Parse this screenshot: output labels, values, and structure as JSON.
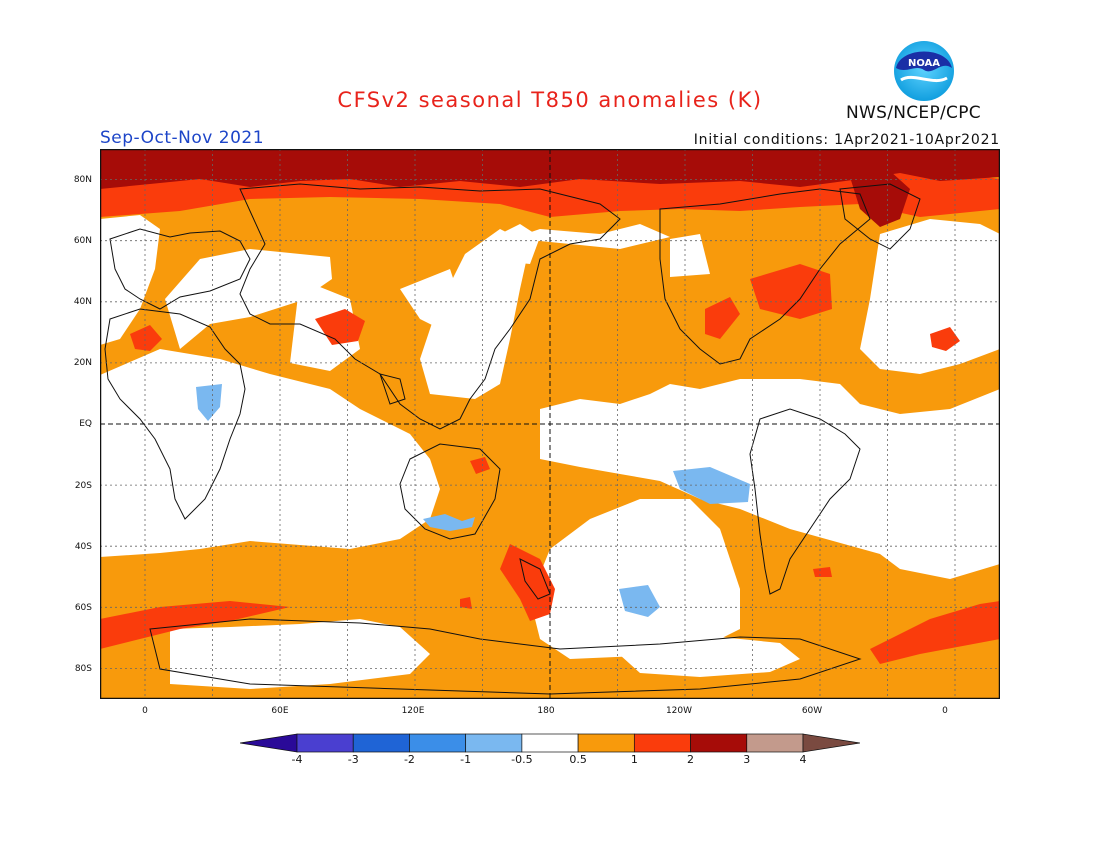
{
  "title": "CFSv2 seasonal T850 anomalies (K)",
  "season": "Sep-Oct-Nov 2021",
  "initial_conditions": "Initial conditions: 1Apr2021-10Apr2021",
  "agency": "NWS/NCEP/CPC",
  "logo": {
    "text": "NOAA",
    "icon": "noaa-logo-icon"
  },
  "map": {
    "projection": "cylindrical-equidistant",
    "lon_range": [
      -20,
      380
    ],
    "lat_range": [
      -90,
      90
    ],
    "lat_labels": [
      "80N",
      "60N",
      "40N",
      "20N",
      "EQ",
      "20S",
      "40S",
      "60S",
      "80S"
    ],
    "lon_labels": [
      "0",
      "60E",
      "120E",
      "180",
      "120W",
      "60W",
      "0"
    ]
  },
  "colorbar": {
    "levels": [
      "-4",
      "-3",
      "-2",
      "-1",
      "-0.5",
      "0.5",
      "1",
      "2",
      "3",
      "4"
    ],
    "colors": [
      "#2a0a98",
      "#4a3fd0",
      "#1f64d6",
      "#3b8ee8",
      "#7ab8f0",
      "#ffffff",
      "#f89a0c",
      "#fa3c0c",
      "#a60c08",
      "#c39a8c",
      "#7a4a40"
    ]
  }
}
